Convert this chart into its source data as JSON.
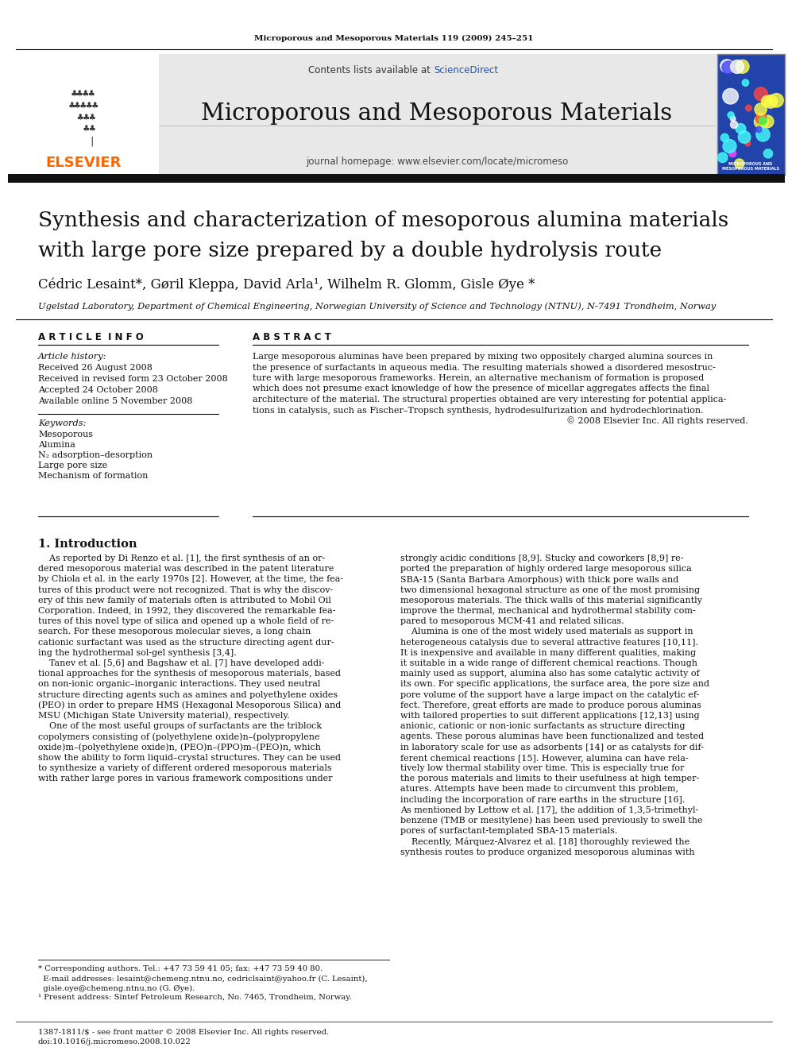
{
  "page_background": "#ffffff",
  "journal_ref": "Microporous and Mesoporous Materials 119 (2009) 245–251",
  "header_bg": "#e8e8e8",
  "header_contents": "Contents lists available at ScienceDirect",
  "sciencedirect_color": "#2255aa",
  "journal_title": "Microporous and Mesoporous Materials",
  "journal_homepage": "journal homepage: www.elsevier.com/locate/micromeso",
  "elsevier_color": "#ff6600",
  "dark_bar_color": "#1a1a1a",
  "article_title_line1": "Synthesis and characterization of mesoporous alumina materials",
  "article_title_line2": "with large pore size prepared by a double hydrolysis route",
  "authors": "Cédric Lesaint*, Gøril Kleppa, David Arla¹, Wilhelm R. Glomm, Gisle Øye *",
  "affiliation": "Ugelstad Laboratory, Department of Chemical Engineering, Norwegian University of Science and Technology (NTNU), N-7491 Trondheim, Norway",
  "article_info_title": "A R T I C L E  I N F O",
  "abstract_title": "A B S T R A C T",
  "article_history_label": "Article history:",
  "received": "Received 26 August 2008",
  "revised": "Received in revised form 23 October 2008",
  "accepted": "Accepted 24 October 2008",
  "online": "Available online 5 November 2008",
  "keywords_label": "Keywords:",
  "keywords": [
    "Mesoporous",
    "Alumina",
    "N₂ adsorption–desorption",
    "Large pore size",
    "Mechanism of formation"
  ],
  "abstract_lines": [
    "Large mesoporous aluminas have been prepared by mixing two oppositely charged alumina sources in",
    "the presence of surfactants in aqueous media. The resulting materials showed a disordered mesostruc-",
    "ture with large mesoporous frameworks. Herein, an alternative mechanism of formation is proposed",
    "which does not presume exact knowledge of how the presence of micellar aggregates affects the final",
    "architecture of the material. The structural properties obtained are very interesting for potential applica-",
    "tions in catalysis, such as Fischer–Tropsch synthesis, hydrodesulfurization and hydrodechlorination.",
    "© 2008 Elsevier Inc. All rights reserved."
  ],
  "section1_title": "1. Introduction",
  "col1_lines": [
    "    As reported by Di Renzo et al. [1], the first synthesis of an or-",
    "dered mesoporous material was described in the patent literature",
    "by Chiola et al. in the early 1970s [2]. However, at the time, the fea-",
    "tures of this product were not recognized. That is why the discov-",
    "ery of this new family of materials often is attributed to Mobil Oil",
    "Corporation. Indeed, in 1992, they discovered the remarkable fea-",
    "tures of this novel type of silica and opened up a whole field of re-",
    "search. For these mesoporous molecular sieves, a long chain",
    "cationic surfactant was used as the structure directing agent dur-",
    "ing the hydrothermal sol-gel synthesis [3,4].",
    "    Tanev et al. [5,6] and Bagshaw et al. [7] have developed addi-",
    "tional approaches for the synthesis of mesoporous materials, based",
    "on non-ionic organic–inorganic interactions. They used neutral",
    "structure directing agents such as amines and polyethylene oxides",
    "(PEO) in order to prepare HMS (Hexagonal Mesoporous Silica) and",
    "MSU (Michigan State University material), respectively.",
    "    One of the most useful groups of surfactants are the triblock",
    "copolymers consisting of (polyethylene oxide)n–(polypropylene",
    "oxide)m–(polyethylene oxide)n, (PEO)n–(PPO)m–(PEO)n, which",
    "show the ability to form liquid–crystal structures. They can be used",
    "to synthesize a variety of different ordered mesoporous materials",
    "with rather large pores in various framework compositions under"
  ],
  "col2_lines": [
    "strongly acidic conditions [8,9]. Stucky and coworkers [8,9] re-",
    "ported the preparation of highly ordered large mesoporous silica",
    "SBA-15 (Santa Barbara Amorphous) with thick pore walls and",
    "two dimensional hexagonal structure as one of the most promising",
    "mesoporous materials. The thick walls of this material significantly",
    "improve the thermal, mechanical and hydrothermal stability com-",
    "pared to mesoporous MCM-41 and related silicas.",
    "    Alumina is one of the most widely used materials as support in",
    "heterogeneous catalysis due to several attractive features [10,11].",
    "It is inexpensive and available in many different qualities, making",
    "it suitable in a wide range of different chemical reactions. Though",
    "mainly used as support, alumina also has some catalytic activity of",
    "its own. For specific applications, the surface area, the pore size and",
    "pore volume of the support have a large impact on the catalytic ef-",
    "fect. Therefore, great efforts are made to produce porous aluminas",
    "with tailored properties to suit different applications [12,13] using",
    "anionic, cationic or non-ionic surfactants as structure directing",
    "agents. These porous aluminas have been functionalized and tested",
    "in laboratory scale for use as adsorbents [14] or as catalysts for dif-",
    "ferent chemical reactions [15]. However, alumina can have rela-",
    "tively low thermal stability over time. This is especially true for",
    "the porous materials and limits to their usefulness at high temper-",
    "atures. Attempts have been made to circumvent this problem,",
    "including the incorporation of rare earths in the structure [16].",
    "As mentioned by Lettow et al. [17], the addition of 1,3,5-trimethyl-",
    "benzene (TMB or mesitylene) has been used previously to swell the",
    "pores of surfactant-templated SBA-15 materials.",
    "    Recently, Márquez-Alvarez et al. [18] thoroughly reviewed the",
    "synthesis routes to produce organized mesoporous aluminas with"
  ],
  "footnote_lines": [
    "* Corresponding authors. Tel.: +47 73 59 41 05; fax: +47 73 59 40 80.",
    "  E-mail addresses: lesaint@chemeng.ntnu.no, cedriclsaint@yahoo.fr (C. Lesaint),",
    "  gisle.oye@chemeng.ntnu.no (G. Øye).",
    "¹ Present address: Sintef Petroleum Research, No. 7465, Trondheim, Norway."
  ],
  "bottom_lines": [
    "1387-1811/$ - see front matter © 2008 Elsevier Inc. All rights reserved.",
    "doi:10.1016/j.micromeso.2008.10.022"
  ]
}
